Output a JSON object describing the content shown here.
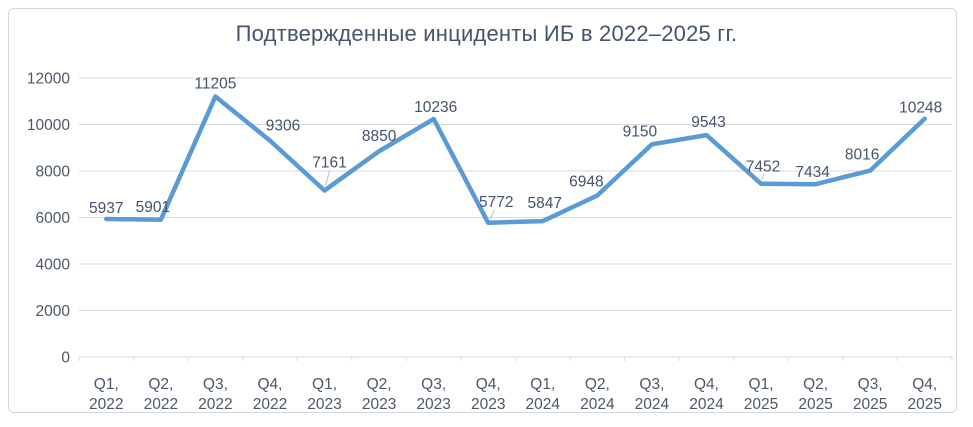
{
  "chart_data": {
    "type": "line",
    "title": "Подтвержденные инциденты ИБ в 2022–2025 гг.",
    "categories": [
      "Q1, 2022",
      "Q2, 2022",
      "Q3, 2022",
      "Q4, 2022",
      "Q1, 2023",
      "Q2, 2023",
      "Q3, 2023",
      "Q4, 2023",
      "Q1, 2024",
      "Q2, 2024",
      "Q3, 2024",
      "Q4, 2024",
      "Q1, 2025",
      "Q2, 2025",
      "Q3, 2025",
      "Q4, 2025"
    ],
    "values": [
      5937,
      5901,
      11205,
      9306,
      7161,
      8850,
      10236,
      5772,
      5847,
      6948,
      9150,
      9543,
      7452,
      7434,
      8016,
      10248
    ],
    "data_labels": [
      "5937",
      "5901",
      "11205",
      "9306",
      "7161",
      "8850",
      "10236",
      "5772",
      "5847",
      "6948",
      "9150",
      "9543",
      "7452",
      "7434",
      "8016",
      "10248"
    ],
    "yticks": [
      0,
      2000,
      4000,
      6000,
      8000,
      10000,
      12000
    ],
    "ylim": [
      0,
      12000
    ],
    "xlabel": "",
    "ylabel": "",
    "grid": true,
    "legend_position": "none",
    "colors": {
      "line": "#5B9BD5",
      "title_text": "#44546A",
      "axis_text": "#4C5866",
      "data_label_text": "#44546A",
      "gridline": "#D9D9D9",
      "axis_line": "#D9D9D9",
      "leader_line": "#BFBFBF"
    }
  }
}
